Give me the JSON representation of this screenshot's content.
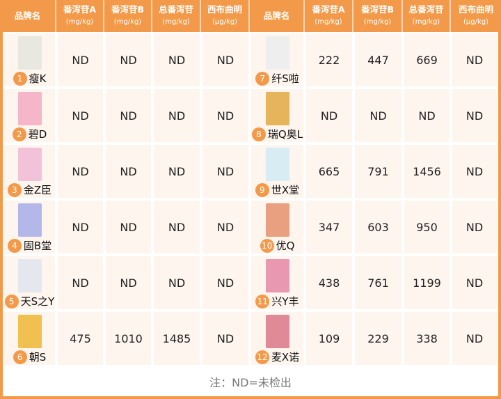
{
  "headers": [
    {
      "name": "品牌名",
      "unit": ""
    },
    {
      "name": "番泻苷A",
      "unit": "(mg/kg)"
    },
    {
      "name": "番泻苷B",
      "unit": "(mg/kg)"
    },
    {
      "name": "总番泻苷",
      "unit": "(mg/kg)"
    },
    {
      "name": "西布曲明",
      "unit": "(μg/kg)"
    },
    {
      "name": "品牌名",
      "unit": ""
    },
    {
      "name": "番泻苷A",
      "unit": "(mg/kg)"
    },
    {
      "name": "番泻苷B",
      "unit": "(mg/kg)"
    },
    {
      "name": "总番泻苷",
      "unit": "(mg/kg)"
    },
    {
      "name": "西布曲明",
      "unit": "(μg/kg)"
    }
  ],
  "rows": [
    {
      "left": {
        "num": "1",
        "brand": "瘦K",
        "a": "ND",
        "b": "ND",
        "total": "ND",
        "sib": "ND",
        "img": "#e8e8e0"
      },
      "right": {
        "num": "7",
        "brand": "纤S啦",
        "a": "222",
        "b": "447",
        "total": "669",
        "sib": "ND",
        "img": "#eeeeee"
      }
    },
    {
      "left": {
        "num": "2",
        "brand": "碧D",
        "a": "ND",
        "b": "ND",
        "total": "ND",
        "sib": "ND",
        "img": "#f4b6c8"
      },
      "right": {
        "num": "8",
        "brand": "瑞Q奥L",
        "a": "ND",
        "b": "ND",
        "total": "ND",
        "sib": "ND",
        "img": "#e6b45a"
      }
    },
    {
      "left": {
        "num": "3",
        "brand": "金Z臣",
        "a": "ND",
        "b": "ND",
        "total": "ND",
        "sib": "ND",
        "img": "#f2c3d8"
      },
      "right": {
        "num": "9",
        "brand": "世X堂",
        "a": "665",
        "b": "791",
        "total": "1456",
        "sib": "ND",
        "img": "#d8ecf4"
      }
    },
    {
      "left": {
        "num": "4",
        "brand": "固B堂",
        "a": "ND",
        "b": "ND",
        "total": "ND",
        "sib": "ND",
        "img": "#b4b8e8"
      },
      "right": {
        "num": "10",
        "brand": "优Q",
        "a": "347",
        "b": "603",
        "total": "950",
        "sib": "ND",
        "img": "#e8a080"
      }
    },
    {
      "left": {
        "num": "5",
        "brand": "天S之Y",
        "a": "ND",
        "b": "ND",
        "total": "ND",
        "sib": "ND",
        "img": "#e4e8ee"
      },
      "right": {
        "num": "11",
        "brand": "兴Y丰",
        "a": "438",
        "b": "761",
        "total": "1199",
        "sib": "ND",
        "img": "#e898b0"
      }
    },
    {
      "left": {
        "num": "6",
        "brand": "朝S",
        "a": "475",
        "b": "1010",
        "total": "1485",
        "sib": "ND",
        "img": "#f0c050"
      },
      "right": {
        "num": "12",
        "brand": "麦X诺",
        "a": "109",
        "b": "229",
        "total": "338",
        "sib": "ND",
        "img": "#e08a98"
      }
    }
  ],
  "footnote": "注：ND=未检出",
  "colors": {
    "accent": "#f39a4a",
    "cell": "#fdf5ee"
  }
}
